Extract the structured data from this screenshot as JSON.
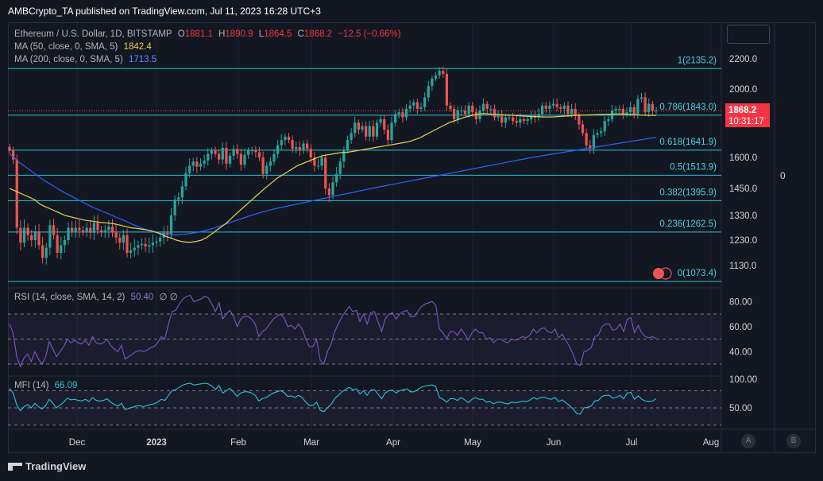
{
  "header": {
    "published": "AMBCrypto_TA published on TradingView.com, Jul 11, 2023 16:28 UTC+3"
  },
  "legend": {
    "symbol": "Ethereum / U.S. Dollar, 1D, BITSTAMP",
    "o_label": "O",
    "o": "1881.1",
    "h_label": "H",
    "h": "1890.9",
    "l_label": "L",
    "l": "1864.5",
    "c_label": "C",
    "c": "1868.2",
    "change": "−12.5 (−0.66%)",
    "ma50_label": "MA (50, close, 0, SMA, 5)",
    "ma50_value": "1842.4",
    "ma200_label": "MA (200, close, 0, SMA, 5)",
    "ma200_value": "1713.5",
    "rsi_label": "RSI (14, close, SMA, 14, 2)",
    "rsi_value": "50.40",
    "rsi_extra": "∅ ∅",
    "mfi_label": "MFI (14)",
    "mfi_value": "66.09"
  },
  "price_badge": {
    "price": "1868.2",
    "countdown": "10:31:17"
  },
  "right_scale_zero": "0",
  "scale_buttons": [
    "A",
    "B"
  ],
  "footer": {
    "brand": "TradingView"
  },
  "colors": {
    "up": "#26a69a",
    "down": "#ef5350",
    "ma50": "#e8d44d",
    "ma200": "#2962ff",
    "fib": "#26c6da",
    "rsi": "#7e57c2",
    "mfi": "#26c6da",
    "background": "#131722"
  },
  "chart_data": {
    "type": "candlestick",
    "x_ticks": [
      "Dec",
      "2023",
      "Feb",
      "Mar",
      "Apr",
      "May",
      "Jun",
      "Jul",
      "Aug"
    ],
    "y_ticks": [
      2200.0,
      2000.0,
      1870.0,
      1600.0,
      1450.0,
      1330.0,
      1230.0,
      1130.0
    ],
    "y_tick_labels": [
      "2200.0",
      "2000.0",
      "1870.0",
      "1600.0",
      "1450.0",
      "1330.0",
      "1230.0",
      "1130.0"
    ],
    "fib_levels": [
      {
        "label": "1(2135.2)",
        "value": 2135.2
      },
      {
        "label": "0.786(1843.0)",
        "value": 1843.0
      },
      {
        "label": "0.618(1641.9)",
        "value": 1641.9
      },
      {
        "label": "0.5(1513.9)",
        "value": 1513.9
      },
      {
        "label": "0.382(1395.9)",
        "value": 1395.9
      },
      {
        "label": "0.236(1262.5)",
        "value": 1262.5
      },
      {
        "label": "0(1073.4)",
        "value": 1073.4
      }
    ],
    "closes": [
      1640,
      1590,
      1280,
      1220,
      1280,
      1250,
      1230,
      1265,
      1210,
      1160,
      1200,
      1290,
      1250,
      1180,
      1210,
      1230,
      1280,
      1265,
      1280,
      1270,
      1265,
      1280,
      1260,
      1300,
      1270,
      1265,
      1270,
      1285,
      1260,
      1240,
      1220,
      1250,
      1180,
      1190,
      1200,
      1210,
      1215,
      1205,
      1210,
      1220,
      1225,
      1240,
      1260,
      1255,
      1330,
      1400,
      1410,
      1460,
      1525,
      1560,
      1580,
      1555,
      1570,
      1585,
      1620,
      1640,
      1620,
      1590,
      1655,
      1570,
      1610,
      1650,
      1620,
      1565,
      1615,
      1640,
      1640,
      1630,
      1600,
      1520,
      1560,
      1580,
      1620,
      1670,
      1700,
      1720,
      1700,
      1650,
      1660,
      1640,
      1680,
      1650,
      1600,
      1560,
      1560,
      1600,
      1450,
      1420,
      1480,
      1520,
      1580,
      1640,
      1700,
      1740,
      1800,
      1760,
      1780,
      1720,
      1780,
      1720,
      1800,
      1820,
      1760,
      1700,
      1800,
      1850,
      1860,
      1830,
      1880,
      1900,
      1920,
      1880,
      1890,
      1950,
      2020,
      2070,
      2090,
      2120,
      2100,
      1900,
      1880,
      1820,
      1870,
      1870,
      1850,
      1900,
      1860,
      1820,
      1870,
      1910,
      1880,
      1880,
      1830,
      1840,
      1800,
      1830,
      1830,
      1810,
      1800,
      1820,
      1810,
      1820,
      1840,
      1830,
      1850,
      1900,
      1880,
      1900,
      1910,
      1890,
      1880,
      1900,
      1850,
      1880,
      1840,
      1790,
      1740,
      1670,
      1650,
      1730,
      1740,
      1750,
      1810,
      1820,
      1870,
      1880,
      1880,
      1850,
      1860,
      1890,
      1850,
      1940,
      1950,
      1860,
      1910,
      1870,
      1870
    ],
    "ma50": [
      1450,
      1440,
      1430,
      1420,
      1410,
      1400,
      1380,
      1370,
      1360,
      1350,
      1340,
      1330,
      1325,
      1320,
      1315,
      1310,
      1308,
      1305,
      1302,
      1300,
      1298,
      1295,
      1290,
      1285,
      1280,
      1278,
      1275,
      1272,
      1268,
      1262,
      1255,
      1245,
      1238,
      1230,
      1225,
      1222,
      1222,
      1225,
      1230,
      1240,
      1255,
      1270,
      1285,
      1300,
      1320,
      1340,
      1360,
      1380,
      1400,
      1420,
      1440,
      1460,
      1480,
      1500,
      1515,
      1530,
      1545,
      1560,
      1570,
      1580,
      1590,
      1600,
      1610,
      1615,
      1620,
      1625,
      1628,
      1630,
      1635,
      1640,
      1645,
      1650,
      1655,
      1660,
      1665,
      1670,
      1675,
      1680,
      1685,
      1690,
      1700,
      1710,
      1725,
      1740,
      1755,
      1770,
      1785,
      1800,
      1810,
      1820,
      1830,
      1838,
      1845,
      1850,
      1852,
      1850,
      1848,
      1846,
      1845,
      1843,
      1842,
      1840,
      1838,
      1836,
      1835,
      1834,
      1833,
      1833,
      1834,
      1836,
      1838,
      1840,
      1842,
      1843,
      1844,
      1845,
      1846,
      1847,
      1848,
      1849,
      1850,
      1850,
      1849,
      1848,
      1846,
      1844,
      1843,
      1842,
      1842
    ],
    "ma200": [
      1620,
      1600,
      1580,
      1565,
      1550,
      1535,
      1520,
      1505,
      1490,
      1478,
      1465,
      1452,
      1440,
      1430,
      1420,
      1410,
      1400,
      1390,
      1380,
      1370,
      1362,
      1354,
      1346,
      1338,
      1330,
      1322,
      1315,
      1308,
      1300,
      1292,
      1285,
      1278,
      1272,
      1266,
      1261,
      1257,
      1254,
      1252,
      1251,
      1251,
      1252,
      1254,
      1256,
      1259,
      1262,
      1266,
      1270,
      1275,
      1280,
      1286,
      1292,
      1298,
      1304,
      1310,
      1316,
      1322,
      1328,
      1334,
      1340,
      1345,
      1350,
      1355,
      1360,
      1364,
      1368,
      1372,
      1376,
      1380,
      1384,
      1388,
      1392,
      1396,
      1400,
      1404,
      1408,
      1412,
      1416,
      1420,
      1424,
      1428,
      1432,
      1436,
      1440,
      1444,
      1448,
      1452,
      1456,
      1460,
      1464,
      1468,
      1472,
      1476,
      1480,
      1484,
      1488,
      1492,
      1496,
      1500,
      1504,
      1508,
      1512,
      1516,
      1520,
      1524,
      1528,
      1532,
      1536,
      1540,
      1544,
      1548,
      1552,
      1556,
      1560,
      1564,
      1568,
      1572,
      1576,
      1580,
      1584,
      1588,
      1592,
      1596,
      1600,
      1604,
      1608,
      1612,
      1616,
      1620,
      1624,
      1628,
      1632,
      1636,
      1640,
      1644,
      1648,
      1652,
      1656,
      1660,
      1664,
      1668,
      1672,
      1676,
      1680,
      1684,
      1688,
      1692,
      1696,
      1700,
      1704,
      1708,
      1712,
      1713.5
    ],
    "rsi": [
      62,
      55,
      36,
      28,
      35,
      38,
      32,
      40,
      34,
      30,
      36,
      48,
      42,
      36,
      40,
      44,
      50,
      47,
      49,
      47,
      46,
      49,
      45,
      52,
      47,
      46,
      47,
      50,
      45,
      42,
      40,
      45,
      34,
      36,
      38,
      40,
      41,
      40,
      41,
      43,
      44,
      47,
      52,
      50,
      62,
      72,
      73,
      78,
      82,
      84,
      85,
      80,
      81,
      82,
      84,
      83,
      78,
      72,
      79,
      66,
      70,
      73,
      68,
      60,
      66,
      68,
      68,
      66,
      62,
      52,
      56,
      58,
      62,
      66,
      68,
      70,
      67,
      60,
      61,
      58,
      62,
      58,
      50,
      44,
      44,
      50,
      33,
      30,
      40,
      46,
      56,
      62,
      68,
      72,
      76,
      72,
      73,
      64,
      70,
      62,
      71,
      72,
      64,
      56,
      66,
      70,
      71,
      66,
      70,
      72,
      73,
      68,
      68,
      72,
      76,
      78,
      79,
      80,
      77,
      58,
      55,
      50,
      56,
      56,
      53,
      58,
      54,
      49,
      55,
      58,
      55,
      55,
      50,
      51,
      47,
      50,
      50,
      48,
      47,
      50,
      49,
      50,
      52,
      51,
      53,
      58,
      55,
      58,
      59,
      56,
      55,
      58,
      51,
      54,
      49,
      44,
      38,
      30,
      29,
      40,
      41,
      43,
      52,
      53,
      60,
      62,
      62,
      57,
      58,
      62,
      56,
      66,
      67,
      55,
      61,
      55,
      52,
      51,
      52,
      50.4
    ],
    "mfi": [
      84,
      76,
      55,
      45,
      52,
      56,
      50,
      58,
      52,
      48,
      54,
      65,
      58,
      50,
      55,
      60,
      67,
      64,
      65,
      63,
      62,
      65,
      61,
      68,
      63,
      62,
      63,
      66,
      60,
      56,
      53,
      58,
      47,
      49,
      51,
      53,
      54,
      52,
      54,
      56,
      57,
      60,
      65,
      63,
      72,
      80,
      82,
      86,
      90,
      92,
      93,
      90,
      91,
      92,
      93,
      92,
      88,
      82,
      89,
      76,
      80,
      84,
      78,
      70,
      76,
      78,
      78,
      76,
      72,
      62,
      66,
      68,
      72,
      76,
      78,
      80,
      77,
      70,
      71,
      68,
      72,
      68,
      60,
      54,
      54,
      60,
      46,
      43,
      50,
      56,
      66,
      72,
      78,
      82,
      86,
      82,
      83,
      74,
      80,
      72,
      81,
      82,
      74,
      66,
      76,
      80,
      81,
      76,
      80,
      82,
      83,
      78,
      78,
      82,
      86,
      88,
      89,
      90,
      87,
      68,
      65,
      60,
      66,
      66,
      63,
      68,
      64,
      59,
      65,
      68,
      65,
      65,
      60,
      61,
      57,
      60,
      60,
      58,
      57,
      60,
      59,
      60,
      62,
      61,
      63,
      68,
      65,
      68,
      69,
      66,
      65,
      68,
      61,
      64,
      59,
      54,
      48,
      40,
      39,
      50,
      51,
      53,
      62,
      63,
      70,
      72,
      72,
      67,
      68,
      72,
      66,
      76,
      77,
      65,
      71,
      65,
      62,
      61,
      62,
      66.09
    ],
    "rsi_ticks": [
      80.0,
      60.0,
      40.0
    ],
    "rsi_tick_labels": [
      "80.00",
      "60.00",
      "40.00"
    ],
    "mfi_ticks": [
      100.0,
      50.0
    ],
    "mfi_tick_labels": [
      "100.00",
      "50.00"
    ]
  }
}
